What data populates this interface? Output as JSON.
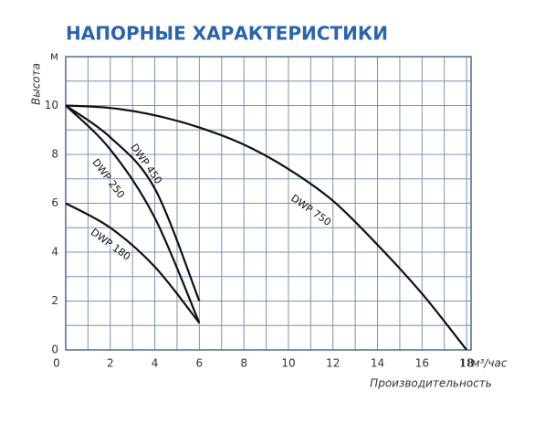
{
  "chart_data": {
    "type": "line",
    "title": "НАПОРНЫЕ ХАРАКТЕРИСТИКИ",
    "y_label": "Высота",
    "x_label": "Производительность",
    "x_unit": "м³/час",
    "xlim": [
      0,
      18.2
    ],
    "ylim": [
      0,
      12
    ],
    "xticks": [
      0,
      2,
      4,
      6,
      8,
      10,
      12,
      14,
      16,
      18
    ],
    "yticks": [
      0,
      2,
      4,
      6,
      8,
      10,
      {
        "value": 12,
        "label": "м"
      }
    ],
    "xgrid": [
      1,
      2,
      3,
      4,
      5,
      6,
      7,
      8,
      9,
      10,
      11,
      12,
      13,
      14,
      15,
      16,
      17,
      18
    ],
    "ygrid": [
      1,
      2,
      3,
      4,
      5,
      6,
      7,
      8,
      9,
      10,
      11
    ],
    "grid": true,
    "series": [
      {
        "name": "DWP 750",
        "color": "#111111",
        "x": [
          0,
          2,
          4,
          6,
          8,
          10,
          12,
          14,
          16,
          18
        ],
        "values": [
          10,
          9.9,
          9.6,
          9.1,
          8.4,
          7.4,
          6.1,
          4.3,
          2.3,
          0
        ]
      },
      {
        "name": "DWP 450",
        "color": "#111111",
        "x": [
          0,
          2,
          4,
          6
        ],
        "values": [
          10,
          8.7,
          6.6,
          2.0
        ]
      },
      {
        "name": "DWP 250",
        "color": "#111111",
        "x": [
          0,
          2,
          4,
          6
        ],
        "values": [
          10,
          8.2,
          5.4,
          1.1
        ]
      },
      {
        "name": "DWP 180",
        "color": "#111111",
        "x": [
          0,
          2,
          4,
          6
        ],
        "values": [
          6,
          5.0,
          3.4,
          1.1
        ]
      }
    ]
  }
}
